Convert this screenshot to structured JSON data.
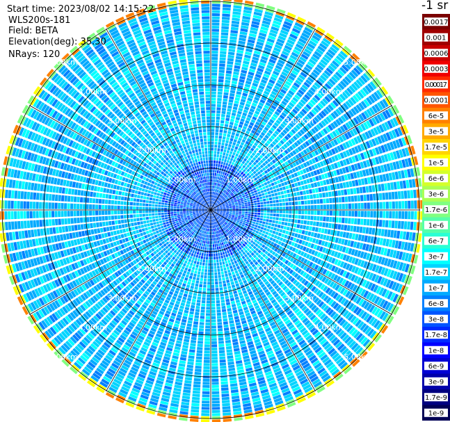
{
  "header": {
    "start_time": "Start time: 2023/08/02 14:15:22",
    "instrument": "WLS200s-181",
    "field": "Field: BETA",
    "elevation": "Elevation(deg): 35.30",
    "nrays": "NRays: 120"
  },
  "colorbar": {
    "unit_label": "-1 sr",
    "bins": [
      {
        "label": "0.0017",
        "color": "#7a0000"
      },
      {
        "label": "0.001",
        "color": "#a00000"
      },
      {
        "label": "0.0006",
        "color": "#c80000"
      },
      {
        "label": "0.0003",
        "color": "#f00000"
      },
      {
        "label": "0.00017",
        "color": "#ff2a00"
      },
      {
        "label": "0.0001",
        "color": "#ff5500"
      },
      {
        "label": "6e-5",
        "color": "#ff8000"
      },
      {
        "label": "3e-5",
        "color": "#ffaa00"
      },
      {
        "label": "1.7e-5",
        "color": "#ffd400"
      },
      {
        "label": "1e-5",
        "color": "#ffff00"
      },
      {
        "label": "6e-6",
        "color": "#d4ff2a"
      },
      {
        "label": "3e-6",
        "color": "#aaff55"
      },
      {
        "label": "1.7e-6",
        "color": "#80ff80"
      },
      {
        "label": "1e-6",
        "color": "#55ffaa"
      },
      {
        "label": "6e-7",
        "color": "#2affd4"
      },
      {
        "label": "3e-7",
        "color": "#00ffff"
      },
      {
        "label": "1.7e-7",
        "color": "#00d4ff"
      },
      {
        "label": "1e-7",
        "color": "#00aaff"
      },
      {
        "label": "6e-8",
        "color": "#0080ff"
      },
      {
        "label": "3e-8",
        "color": "#0055ff"
      },
      {
        "label": "1.7e-8",
        "color": "#002aff"
      },
      {
        "label": "1e-8",
        "color": "#0000ff"
      },
      {
        "label": "6e-9",
        "color": "#0000d4"
      },
      {
        "label": "3e-9",
        "color": "#0000aa"
      },
      {
        "label": "1.7e-9",
        "color": "#000080"
      },
      {
        "label": "1e-9",
        "color": "#000055"
      }
    ]
  },
  "chart_data": {
    "type": "heatmap",
    "projection": "polar PPI",
    "field": "BETA",
    "nrays": 120,
    "range_rings_km": [
      1,
      2,
      3,
      4,
      5
    ],
    "range_labels": [
      "1.00km",
      "2.00km",
      "3.00km",
      "4.00km",
      "5.00km"
    ],
    "max_range_km": 5.1,
    "azimuth_spokes_deg": [
      0,
      30,
      60,
      90,
      120,
      150,
      180,
      210,
      240,
      270,
      300,
      330
    ],
    "dominant_value_near_center": "3e-8",
    "dominant_value_mid_range": "3e-7",
    "outer_edge_values": [
      "1.7e-6",
      "1e-5",
      "6e-5"
    ],
    "colors": {
      "ring": "#000000",
      "label": "#ffffff"
    }
  }
}
